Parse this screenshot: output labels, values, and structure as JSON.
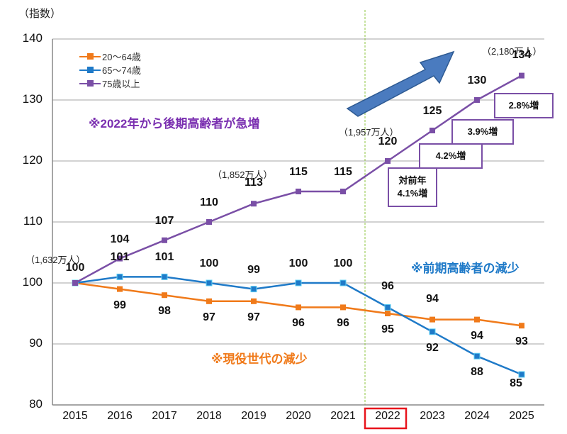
{
  "chart_data": {
    "type": "line",
    "title": "",
    "ylabel": "（指数）",
    "xlabel": "",
    "ylim": [
      80,
      140
    ],
    "yticks": [
      "140",
      "130",
      "120",
      "110",
      "100",
      "90",
      "80"
    ],
    "grid": true,
    "legend_position": "top-left",
    "categories": [
      "2015",
      "2016",
      "2017",
      "2018",
      "2019",
      "2020",
      "2021",
      "2022",
      "2023",
      "2024",
      "2025"
    ],
    "highlighted_category": "2022",
    "series": [
      {
        "name": "20～64歳",
        "color": "#f07a1a",
        "values": [
          100,
          99,
          98,
          97,
          97,
          96,
          96,
          95,
          94,
          94,
          93
        ]
      },
      {
        "name": "65～74歳",
        "color": "#1f7ac8",
        "values": [
          100,
          101,
          101,
          100,
          99,
          100,
          100,
          96,
          92,
          88,
          85
        ]
      },
      {
        "name": "75歳以上",
        "color": "#7a4fa6",
        "values": [
          100,
          104,
          107,
          110,
          113,
          115,
          115,
          120,
          125,
          130,
          134
        ]
      }
    ],
    "population_annotations": [
      {
        "year": "2015",
        "text": "（1,632万人）"
      },
      {
        "year": "2019",
        "text": "（1,852万人）"
      },
      {
        "year": "2022",
        "text": "（1,957万人）"
      },
      {
        "year": "2025",
        "text": "（2,180万人）"
      }
    ],
    "growth_boxes": [
      {
        "year": "2022",
        "text": "対前年\n4.1%増"
      },
      {
        "year": "2023",
        "text": "4.2%増"
      },
      {
        "year": "2024",
        "text": "3.9%増"
      },
      {
        "year": "2025",
        "text": "2.8%増"
      }
    ],
    "annotations": [
      {
        "text": "※2022年から後期高齢者が急増",
        "color": "#7a2fb0"
      },
      {
        "text": "※前期高齢者の減少",
        "color": "#1f7ac8"
      },
      {
        "text": "※現役世代の減少",
        "color": "#f07a1a"
      }
    ]
  },
  "labels": {
    "unit": "（指数）",
    "legend": [
      "20～64歳",
      "65～74歳",
      "75歳以上"
    ],
    "anno_late_elderly": "※2022年から後期高齢者が急増",
    "anno_early_elderly": "※前期高齢者の減少",
    "anno_working": "※現役世代の減少",
    "pop_2015": "（1,632万人）",
    "pop_2019": "（1,852万人）",
    "pop_2022": "（1,957万人）",
    "pop_2025": "（2,180万人）",
    "growth_2022_line1": "対前年",
    "growth_2022_line2": "4.1%増",
    "growth_2023": "4.2%増",
    "growth_2024": "3.9%増",
    "growth_2025": "2.8%増"
  }
}
